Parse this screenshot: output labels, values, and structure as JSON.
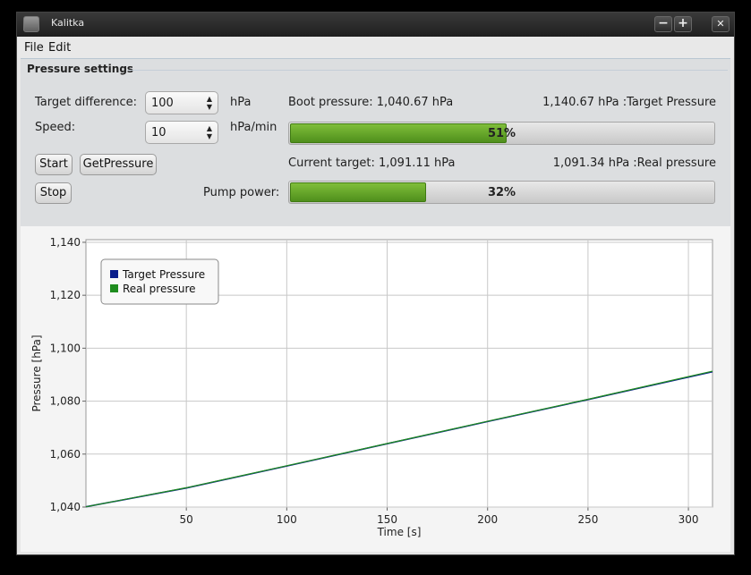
{
  "window": {
    "title": "Kalitka",
    "minimize_label": "−",
    "maximize_label": "+",
    "close_label": "✕"
  },
  "menu": {
    "items": [
      "File",
      "Edit"
    ]
  },
  "settings": {
    "title": "Pressure settings",
    "target_difference_label": "Target difference:",
    "target_difference_value": "100",
    "target_difference_unit": "hPa",
    "speed_label": "Speed:",
    "speed_value": "10",
    "speed_unit": "hPa/min",
    "start_label": "Start",
    "getpressure_label": "GetPressure",
    "stop_label": "Stop",
    "pump_power_label": "Pump power:",
    "boot_pressure": "Boot pressure: 1,040.67 hPa",
    "target_pressure": "1,140.67 hPa :Target Pressure",
    "current_target": "Current target: 1,091.11 hPa",
    "real_pressure": "1,091.34 hPa :Real pressure",
    "progress_percent": 51,
    "progress_text": "51%",
    "pump_percent": 32,
    "pump_text": "32%"
  },
  "colors": {
    "target": "#0a1e8c",
    "real": "#1e8c1e",
    "progress_fill": "#5a9e22"
  },
  "chart_data": {
    "type": "line",
    "xlabel": "Time [s]",
    "ylabel": "Pressure [hPa]",
    "xlim": [
      0,
      312
    ],
    "ylim": [
      1040,
      1141
    ],
    "x_ticks": [
      50,
      100,
      150,
      200,
      250,
      300
    ],
    "x_tick_labels": [
      "50",
      "100",
      "150",
      "200",
      "250",
      "300"
    ],
    "y_ticks": [
      1040,
      1060,
      1080,
      1100,
      1120,
      1140
    ],
    "y_tick_labels": [
      "1,040",
      "1,060",
      "1,080",
      "1,100",
      "1,120",
      "1,140"
    ],
    "grid": true,
    "legend_position": "top-left",
    "series": [
      {
        "name": "Target Pressure",
        "color": "#0a1e8c",
        "x": [
          0,
          50,
          100,
          150,
          200,
          250,
          312
        ],
        "y": [
          1040.1,
          1047.2,
          1055.5,
          1063.9,
          1072.3,
          1080.6,
          1091.1
        ]
      },
      {
        "name": "Real pressure",
        "color": "#1e8c1e",
        "x": [
          0,
          50,
          100,
          150,
          200,
          250,
          312
        ],
        "y": [
          1040.1,
          1047.3,
          1055.6,
          1064.0,
          1072.4,
          1080.7,
          1091.3
        ]
      }
    ]
  }
}
